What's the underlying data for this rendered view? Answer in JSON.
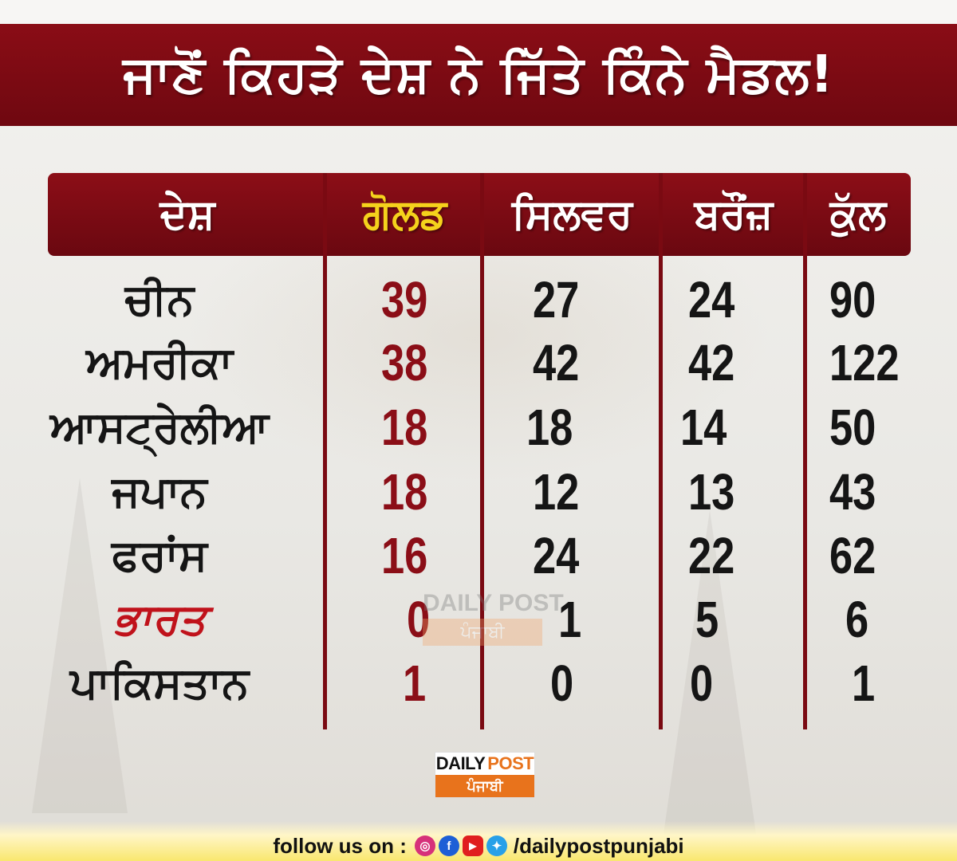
{
  "title": "ਜਾਣੋਂ ਕਿਹੜੇ ਦੇਸ਼ ਨੇ ਜਿੱਤੇ ਕਿੰਨੇ ਮੈਡਲ!",
  "headers": {
    "country": "ਦੇਸ਼",
    "gold": "ਗੋਲਡ",
    "silver": "ਸਿਲਵਰ",
    "bronze": "ਬਰੌਂਜ਼",
    "total": "ਕੁੱਲ"
  },
  "rows": [
    {
      "country": "ਚੀਨ",
      "gold": "39",
      "silver": "27",
      "bronze": "24",
      "total": "90"
    },
    {
      "country": "ਅਮਰੀਕਾ",
      "gold": "38",
      "silver": "42",
      "bronze": "42",
      "total": "122"
    },
    {
      "country": "ਆਸਟ੍ਰੇਲੀਆ",
      "gold": "18",
      "silver": "18",
      "bronze": "14",
      "total": "50"
    },
    {
      "country": "ਜਪਾਨ",
      "gold": "18",
      "silver": "12",
      "bronze": "13",
      "total": "43"
    },
    {
      "country": "ਫਰਾਂਸ",
      "gold": "16",
      "silver": "24",
      "bronze": "22",
      "total": "62"
    },
    {
      "country": "ਭਾਰਤ",
      "gold": "0",
      "silver": "1",
      "bronze": "5",
      "total": "6"
    },
    {
      "country": "ਪਾਕਿਸਤਾਨ",
      "gold": "1",
      "silver": "0",
      "bronze": "0",
      "total": "1"
    }
  ],
  "watermark": {
    "top": "DAILY POST",
    "bottom": "ਪੰਜਾਬੀ"
  },
  "logo": {
    "daily": "DAILY",
    "post": "POST",
    "sub": "ਪੰਜਾਬੀ"
  },
  "footer": {
    "follow": "follow us on :",
    "handle": "/dailypostpunjabi",
    "icons": [
      "instagram-icon",
      "facebook-icon",
      "youtube-icon",
      "twitter-icon"
    ]
  },
  "colors": {
    "banner": "#8a0d16",
    "gold_header": "#f5d21c",
    "gold_numbers": "#8b0e17",
    "india": "#c0121b",
    "logo_accent": "#e8731c"
  }
}
